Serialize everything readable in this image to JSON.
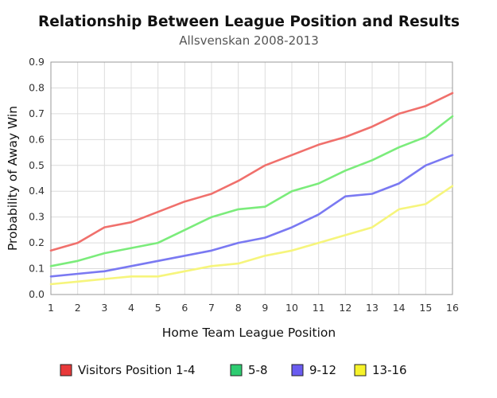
{
  "chart_data": {
    "type": "line",
    "title": "Relationship Between League Position and Results",
    "subtitle": "Allsvenskan 2008-2013",
    "xlabel": "Home Team League Position",
    "ylabel": "Probability of Away Win",
    "x": [
      1,
      2,
      3,
      4,
      5,
      6,
      7,
      8,
      9,
      10,
      11,
      12,
      13,
      14,
      15,
      16
    ],
    "xlim": [
      1,
      16
    ],
    "ylim": [
      0,
      0.9
    ],
    "y_ticks": [
      "0.0",
      "0.1",
      "0.2",
      "0.3",
      "0.4",
      "0.5",
      "0.6",
      "0.7",
      "0.8",
      "0.9"
    ],
    "x_ticks": [
      "1",
      "2",
      "3",
      "4",
      "5",
      "6",
      "7",
      "8",
      "9",
      "10",
      "11",
      "12",
      "13",
      "14",
      "15",
      "16"
    ],
    "grid": true,
    "legend_position": "bottom",
    "series": [
      {
        "name": "Visitors Position 1-4",
        "color": "#f0706c",
        "legend_color": "#e8393a",
        "values": [
          0.17,
          0.2,
          0.26,
          0.28,
          0.32,
          0.36,
          0.39,
          0.44,
          0.5,
          0.54,
          0.58,
          0.61,
          0.65,
          0.7,
          0.73,
          0.78
        ]
      },
      {
        "name": "5-8",
        "color": "#7bec7b",
        "legend_color": "#2ecc71",
        "values": [
          0.11,
          0.13,
          0.16,
          0.18,
          0.2,
          0.25,
          0.3,
          0.33,
          0.34,
          0.4,
          0.43,
          0.48,
          0.52,
          0.57,
          0.61,
          0.69
        ]
      },
      {
        "name": "9-12",
        "color": "#7a79f2",
        "legend_color": "#6a5cf0",
        "values": [
          0.07,
          0.08,
          0.09,
          0.11,
          0.13,
          0.15,
          0.17,
          0.2,
          0.22,
          0.26,
          0.31,
          0.38,
          0.39,
          0.43,
          0.5,
          0.54
        ]
      },
      {
        "name": "13-16",
        "color": "#f6f57c",
        "legend_color": "#f7f32a",
        "values": [
          0.04,
          0.05,
          0.06,
          0.07,
          0.07,
          0.09,
          0.11,
          0.12,
          0.15,
          0.17,
          0.2,
          0.23,
          0.26,
          0.33,
          0.35,
          0.42
        ]
      }
    ]
  }
}
